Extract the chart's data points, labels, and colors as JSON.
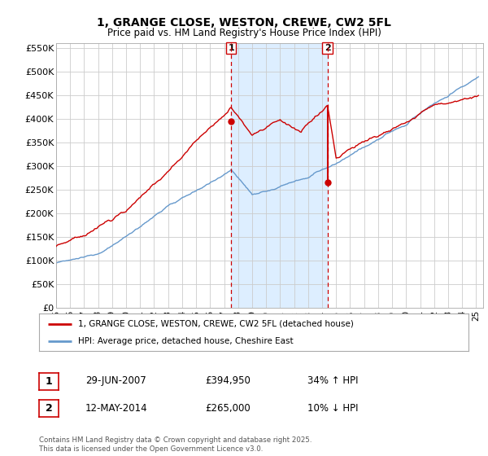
{
  "title": "1, GRANGE CLOSE, WESTON, CREWE, CW2 5FL",
  "subtitle": "Price paid vs. HM Land Registry's House Price Index (HPI)",
  "legend_line1": "1, GRANGE CLOSE, WESTON, CREWE, CW2 5FL (detached house)",
  "legend_line2": "HPI: Average price, detached house, Cheshire East",
  "footnote": "Contains HM Land Registry data © Crown copyright and database right 2025.\nThis data is licensed under the Open Government Licence v3.0.",
  "sale1_date": "29-JUN-2007",
  "sale1_price": "£394,950",
  "sale1_hpi": "34% ↑ HPI",
  "sale2_date": "12-MAY-2014",
  "sale2_price": "£265,000",
  "sale2_hpi": "10% ↓ HPI",
  "red_color": "#cc0000",
  "blue_color": "#6699cc",
  "shading_color": "#ddeeff",
  "vline_color": "#cc0000",
  "grid_color": "#cccccc",
  "ylim": [
    0,
    560000
  ],
  "yticks": [
    0,
    50000,
    100000,
    150000,
    200000,
    250000,
    300000,
    350000,
    400000,
    450000,
    500000,
    550000
  ],
  "ytick_labels": [
    "£0",
    "£50K",
    "£100K",
    "£150K",
    "£200K",
    "£250K",
    "£300K",
    "£350K",
    "£400K",
    "£450K",
    "£500K",
    "£550K"
  ]
}
